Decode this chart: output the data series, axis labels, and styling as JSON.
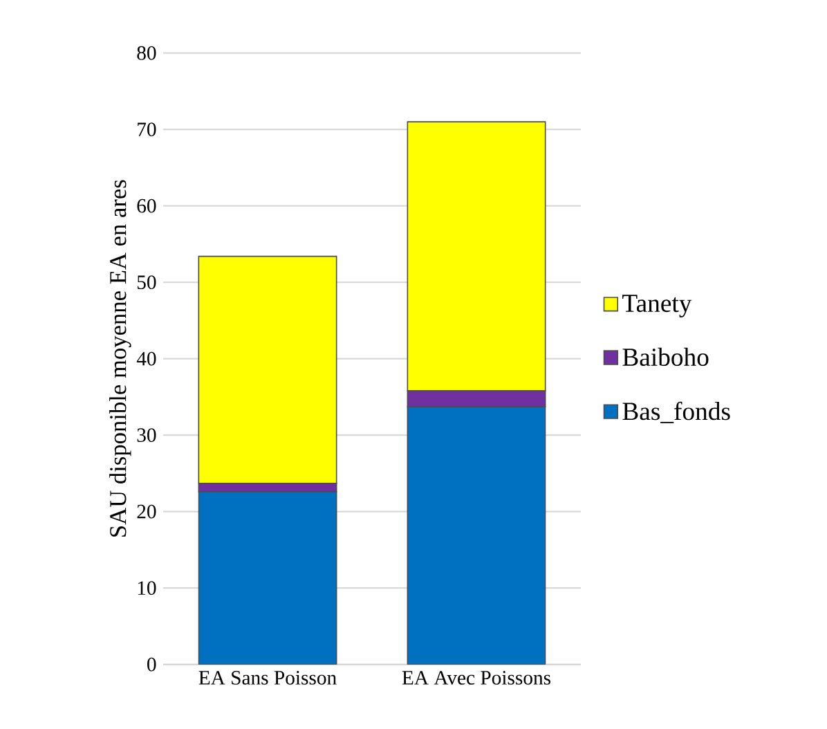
{
  "chart_data": {
    "type": "bar",
    "stacked": true,
    "ylabel": "SAU disponible moyenne EA  en ares",
    "categories": [
      "EA Sans Poisson",
      "EA Avec Poissons"
    ],
    "series": [
      {
        "name": "Bas_fonds",
        "color": "#0070c0",
        "values": [
          22.6,
          33.7
        ]
      },
      {
        "name": "Baiboho",
        "color": "#7030a0",
        "values": [
          1.1,
          2.1
        ]
      },
      {
        "name": "Tanety",
        "color": "#ffff00",
        "values": [
          29.7,
          35.2
        ]
      }
    ],
    "ylim": [
      0,
      80
    ],
    "yticks": [
      0,
      10,
      20,
      30,
      40,
      50,
      60,
      70,
      80
    ],
    "grid": "y",
    "legend": "right"
  }
}
